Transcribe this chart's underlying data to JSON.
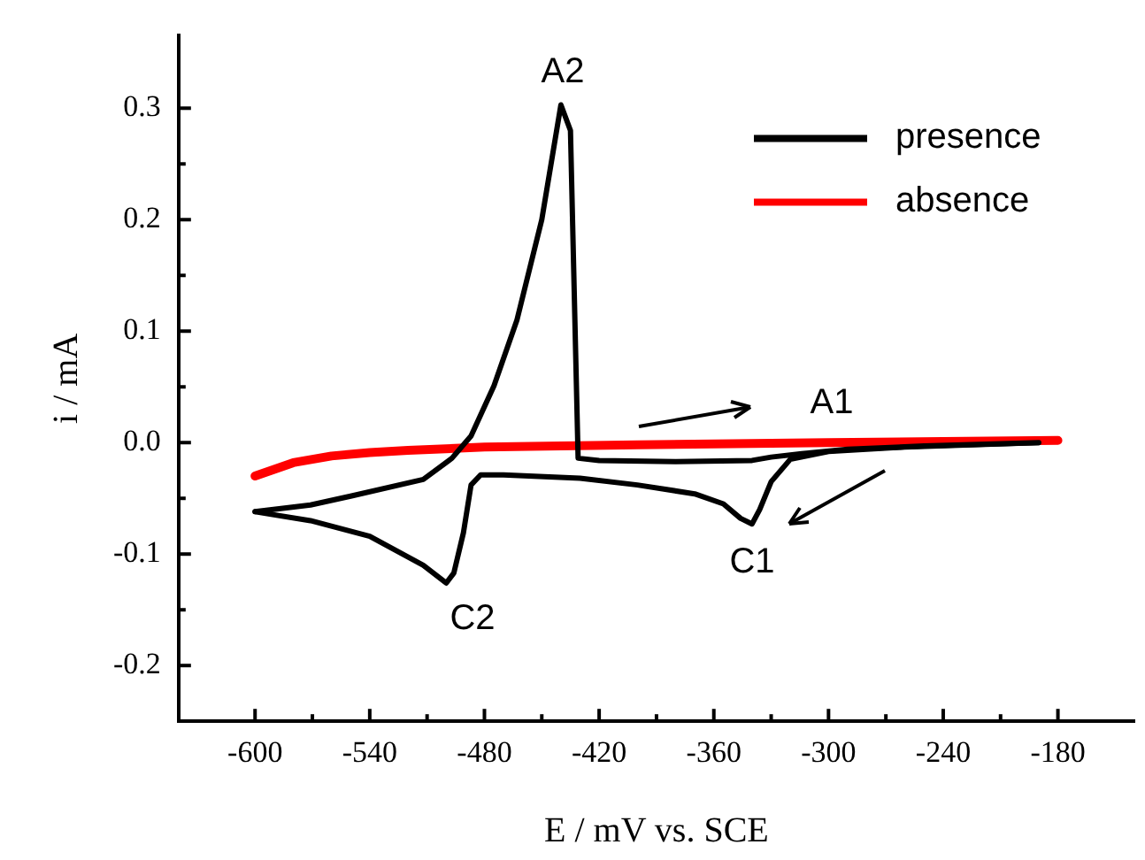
{
  "chart_data": {
    "type": "line",
    "xlabel": "E / mV vs. SCE",
    "ylabel": "i / mA",
    "xlim": [
      -640,
      -140
    ],
    "ylim": [
      -0.25,
      0.365
    ],
    "xticks": [
      -600,
      {
        "value": -570,
        "label": null
      },
      -540,
      {
        "value": -510,
        "label": null
      },
      -480,
      {
        "value": -450,
        "label": null
      },
      -420,
      {
        "value": -390,
        "label": null
      },
      -360,
      {
        "value": -330,
        "label": null
      },
      -300,
      {
        "value": -270,
        "label": null
      },
      -240,
      {
        "value": -210,
        "label": null
      },
      -180
    ],
    "yticks": [
      -0.2,
      {
        "value": -0.15,
        "label": null
      },
      -0.1,
      {
        "value": -0.05,
        "label": null
      },
      {
        "value": 0,
        "label": "0.0"
      },
      {
        "value": 0.05,
        "label": null
      },
      0.1,
      {
        "value": 0.15,
        "label": null
      },
      0.2,
      {
        "value": 0.25,
        "label": null
      },
      0.3
    ],
    "legend": "top right",
    "marker": "none",
    "line_style": "solid",
    "grid": false,
    "series": [
      {
        "name": "presence",
        "color": "#000000",
        "x": [
          -600,
          -571,
          -550,
          -512,
          -497,
          -487,
          -475,
          -463,
          -450,
          -440,
          -435,
          -431,
          -420,
          -380,
          -340,
          -330,
          -314,
          -290,
          -250,
          -190
        ],
        "values": [
          -0.062,
          -0.056,
          -0.048,
          -0.033,
          -0.014,
          0.006,
          0.051,
          0.11,
          0.2,
          0.303,
          0.28,
          -0.014,
          -0.016,
          -0.017,
          -0.016,
          -0.013,
          -0.01,
          -0.006,
          -0.003,
          0.0
        ]
      },
      {
        "name": "absence",
        "color": "#ff0000",
        "x": [
          -600,
          -580,
          -560,
          -540,
          -520,
          -480,
          -440,
          -400,
          -350,
          -300,
          -240,
          -180
        ],
        "values": [
          -0.03,
          -0.018,
          -0.012,
          -0.009,
          -0.007,
          -0.004,
          -0.003,
          -0.002,
          -0.001,
          0.0,
          0.001,
          0.002
        ]
      },
      {
        "color": "#000000",
        "x": [
          -190,
          -260,
          -300,
          -320,
          -330,
          -336,
          -340,
          -346,
          -355,
          -370,
          -400,
          -430,
          -470,
          -482,
          -487,
          -491,
          -496,
          -500,
          -512,
          -540,
          -571,
          -600
        ],
        "values": [
          0.0,
          -0.004,
          -0.008,
          -0.015,
          -0.035,
          -0.06,
          -0.073,
          -0.068,
          -0.055,
          -0.046,
          -0.038,
          -0.032,
          -0.029,
          -0.029,
          -0.038,
          -0.081,
          -0.117,
          -0.126,
          -0.11,
          -0.084,
          -0.07,
          -0.062
        ]
      }
    ],
    "annotations": [
      "A2",
      "A1",
      "C1",
      "C2"
    ]
  }
}
